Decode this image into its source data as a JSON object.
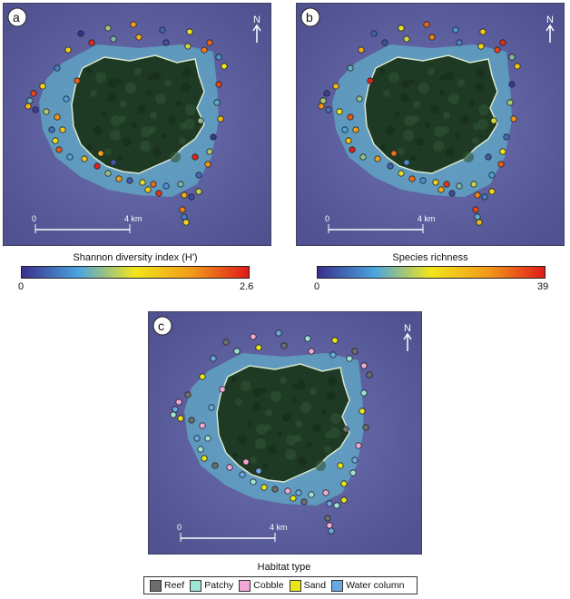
{
  "panels": {
    "a": {
      "letter": "a",
      "north": "N",
      "scale_zero": "0",
      "scale_label": "4 km"
    },
    "b": {
      "letter": "b",
      "north": "N",
      "scale_zero": "0",
      "scale_label": "4 km"
    },
    "c": {
      "letter": "c",
      "north": "N",
      "scale_zero": "0",
      "scale_label": "4 km"
    }
  },
  "colorbars": {
    "a": {
      "title": "Shannon diversity index (H')",
      "min": "0",
      "max": "2.6"
    },
    "b": {
      "title": "Species richness",
      "min": "0",
      "max": "39"
    }
  },
  "habitat_legend": {
    "title": "Habitat type",
    "items": [
      {
        "label": "Reef",
        "color": "#6e6e6e"
      },
      {
        "label": "Patchy",
        "color": "#9fe3d4"
      },
      {
        "label": "Cobble",
        "color": "#f2a9d6"
      },
      {
        "label": "Sand",
        "color": "#e9e51a"
      },
      {
        "label": "Water column",
        "color": "#6aa8e0"
      }
    ]
  },
  "colors": {
    "ocean": "#5d5f9e",
    "land": "#1f3a24",
    "reef_shallow": "#5ec7d6",
    "colorbar_stops": [
      "#3a2f8c",
      "#4aa4e0",
      "#f2e51a",
      "#f29a1a",
      "#e01a1a"
    ]
  }
}
